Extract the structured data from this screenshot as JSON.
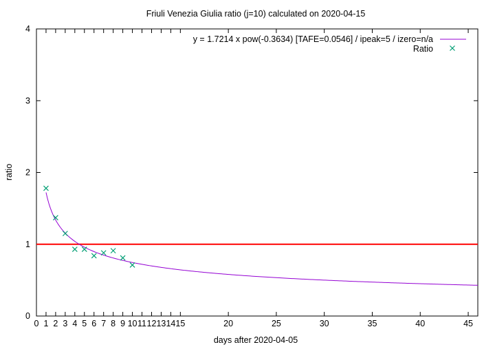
{
  "chart_data": {
    "type": "scatter",
    "title": "Friuli Venezia Giulia ratio (j=10) calculated on 2020-04-15",
    "xlabel": "days after 2020-04-05",
    "ylabel": "ratio",
    "xlim": [
      0,
      46
    ],
    "ylim": [
      0,
      4
    ],
    "xticks": [
      0,
      1,
      2,
      3,
      4,
      5,
      6,
      7,
      8,
      9,
      10,
      11,
      12,
      13,
      14,
      15,
      20,
      25,
      30,
      35,
      40,
      45
    ],
    "yticks": [
      0,
      1,
      2,
      3,
      4
    ],
    "grid": false,
    "legend_position": "top-right",
    "reference_line": {
      "y": 1,
      "color": "#ff0000"
    },
    "fit": {
      "name": "y = 1.7214 x pow(-0.3634)  [TAFE=0.0546] / ipeak=5 / izero=n/a",
      "a": 1.7214,
      "b": -0.3634,
      "x_range": [
        1,
        46
      ],
      "color": "#9400d3"
    },
    "series": [
      {
        "name": "Ratio",
        "color": "#009e73",
        "marker": "x",
        "x": [
          1,
          2,
          3,
          4,
          5,
          6,
          7,
          8,
          9,
          10
        ],
        "y": [
          1.78,
          1.37,
          1.15,
          0.93,
          0.93,
          0.84,
          0.88,
          0.91,
          0.81,
          0.71
        ]
      }
    ]
  }
}
